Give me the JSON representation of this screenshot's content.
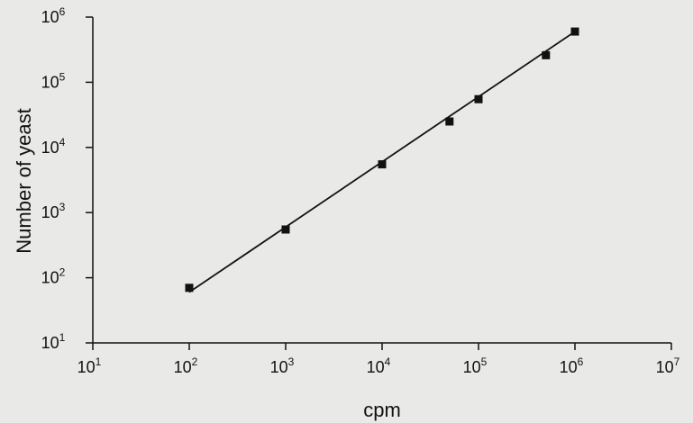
{
  "chart_data": {
    "type": "scatter",
    "title": "",
    "xlabel": "cpm",
    "ylabel": "Number of yeast",
    "xscale": "log",
    "yscale": "log",
    "xlim": [
      10,
      10000000
    ],
    "ylim": [
      10,
      1000000
    ],
    "grid": false,
    "x_ticks": [
      {
        "base": "10",
        "exp": "1"
      },
      {
        "base": "10",
        "exp": "2"
      },
      {
        "base": "10",
        "exp": "3"
      },
      {
        "base": "10",
        "exp": "4"
      },
      {
        "base": "10",
        "exp": "5"
      },
      {
        "base": "10",
        "exp": "6"
      },
      {
        "base": "10",
        "exp": "7"
      }
    ],
    "y_ticks": [
      {
        "base": "10",
        "exp": "1"
      },
      {
        "base": "10",
        "exp": "2"
      },
      {
        "base": "10",
        "exp": "3"
      },
      {
        "base": "10",
        "exp": "4"
      },
      {
        "base": "10",
        "exp": "5"
      },
      {
        "base": "10",
        "exp": "6"
      }
    ],
    "series": [
      {
        "marker": "square",
        "x": [
          100,
          1000,
          10000,
          50000,
          100000,
          500000,
          1000000
        ],
        "y": [
          70,
          550,
          5500,
          25000,
          55000,
          260000,
          600000
        ]
      }
    ],
    "fit_line": {
      "x": [
        100,
        1000000
      ],
      "y": [
        60,
        600000
      ]
    },
    "colors": {
      "marks": "#111111",
      "background": "#e9e9e7"
    }
  }
}
